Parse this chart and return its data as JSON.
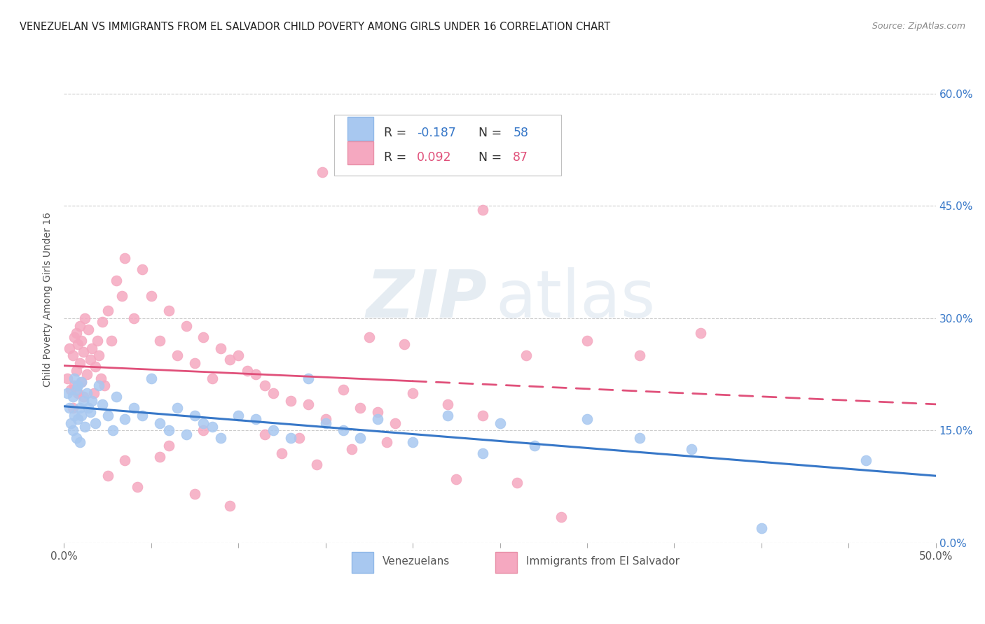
{
  "title": "VENEZUELAN VS IMMIGRANTS FROM EL SALVADOR CHILD POVERTY AMONG GIRLS UNDER 16 CORRELATION CHART",
  "source_text": "Source: ZipAtlas.com",
  "ylabel": "Child Poverty Among Girls Under 16",
  "ytick_labels": [
    "0.0%",
    "15.0%",
    "30.0%",
    "45.0%",
    "60.0%"
  ],
  "ytick_values": [
    0.0,
    15.0,
    30.0,
    45.0,
    60.0
  ],
  "xlim": [
    0.0,
    50.0
  ],
  "ylim": [
    0.0,
    65.0
  ],
  "venezuelans_R": -0.187,
  "venezuelans_N": 58,
  "elsalvador_R": 0.092,
  "elsalvador_N": 87,
  "legend_label_1": "Venezuelans",
  "legend_label_2": "Immigrants from El Salvador",
  "color_blue": "#a8c8f0",
  "color_pink": "#f5a8c0",
  "line_color_blue": "#3878c8",
  "line_color_pink": "#e0507a",
  "background_color": "#ffffff",
  "watermark_zip": "ZIP",
  "watermark_atlas": "atlas",
  "title_fontsize": 10.5,
  "venezuelans_x": [
    0.2,
    0.3,
    0.4,
    0.5,
    0.5,
    0.6,
    0.6,
    0.7,
    0.7,
    0.8,
    0.8,
    0.9,
    0.9,
    1.0,
    1.0,
    1.1,
    1.2,
    1.3,
    1.4,
    1.5,
    1.6,
    1.8,
    2.0,
    2.2,
    2.5,
    2.8,
    3.0,
    3.5,
    4.0,
    4.5,
    5.0,
    5.5,
    6.0,
    6.5,
    7.0,
    7.5,
    8.0,
    8.5,
    9.0,
    10.0,
    11.0,
    12.0,
    13.0,
    14.0,
    15.0,
    16.0,
    17.0,
    18.0,
    20.0,
    22.0,
    24.0,
    25.0,
    27.0,
    30.0,
    33.0,
    36.0,
    40.0,
    46.0
  ],
  "venezuelans_y": [
    20.0,
    18.0,
    16.0,
    19.5,
    15.0,
    22.0,
    17.0,
    20.5,
    14.0,
    21.0,
    16.5,
    18.0,
    13.5,
    21.5,
    17.0,
    19.0,
    15.5,
    20.0,
    18.0,
    17.5,
    19.0,
    16.0,
    21.0,
    18.5,
    17.0,
    15.0,
    19.5,
    16.5,
    18.0,
    17.0,
    22.0,
    16.0,
    15.0,
    18.0,
    14.5,
    17.0,
    16.0,
    15.5,
    14.0,
    17.0,
    16.5,
    15.0,
    14.0,
    22.0,
    16.0,
    15.0,
    14.0,
    16.5,
    13.5,
    17.0,
    12.0,
    16.0,
    13.0,
    16.5,
    14.0,
    12.5,
    2.0,
    11.0
  ],
  "elsalvador_x": [
    0.2,
    0.3,
    0.4,
    0.5,
    0.5,
    0.6,
    0.6,
    0.7,
    0.7,
    0.8,
    0.8,
    0.9,
    0.9,
    1.0,
    1.0,
    1.1,
    1.1,
    1.2,
    1.3,
    1.4,
    1.5,
    1.6,
    1.7,
    1.8,
    1.9,
    2.0,
    2.1,
    2.2,
    2.3,
    2.5,
    2.7,
    3.0,
    3.3,
    3.5,
    4.0,
    4.5,
    5.0,
    5.5,
    6.0,
    6.5,
    7.0,
    7.5,
    8.0,
    8.5,
    9.0,
    9.5,
    10.0,
    10.5,
    11.0,
    11.5,
    12.0,
    13.0,
    14.0,
    15.0,
    16.0,
    17.0,
    18.0,
    19.0,
    20.0,
    22.0,
    24.0,
    26.0,
    11.5,
    14.5,
    16.5,
    18.5,
    8.0,
    3.5,
    2.5,
    6.0,
    4.2,
    7.5,
    9.5,
    22.5,
    12.5,
    26.5,
    13.5,
    19.5,
    5.5,
    17.5,
    14.8,
    28.5,
    30.0,
    33.0,
    36.5,
    25.5,
    24.0
  ],
  "elsalvador_y": [
    22.0,
    26.0,
    20.5,
    25.0,
    18.0,
    27.5,
    21.0,
    28.0,
    23.0,
    26.5,
    20.0,
    29.0,
    24.0,
    27.0,
    21.5,
    25.5,
    19.5,
    30.0,
    22.5,
    28.5,
    24.5,
    26.0,
    20.0,
    23.5,
    27.0,
    25.0,
    22.0,
    29.5,
    21.0,
    31.0,
    27.0,
    35.0,
    33.0,
    38.0,
    30.0,
    36.5,
    33.0,
    27.0,
    31.0,
    25.0,
    29.0,
    24.0,
    27.5,
    22.0,
    26.0,
    24.5,
    25.0,
    23.0,
    22.5,
    21.0,
    20.0,
    19.0,
    18.5,
    16.5,
    20.5,
    18.0,
    17.5,
    16.0,
    20.0,
    18.5,
    17.0,
    8.0,
    14.5,
    10.5,
    12.5,
    13.5,
    15.0,
    11.0,
    9.0,
    13.0,
    7.5,
    6.5,
    5.0,
    8.5,
    12.0,
    25.0,
    14.0,
    26.5,
    11.5,
    27.5,
    49.5,
    3.5,
    27.0,
    25.0,
    28.0,
    52.0,
    44.5
  ]
}
